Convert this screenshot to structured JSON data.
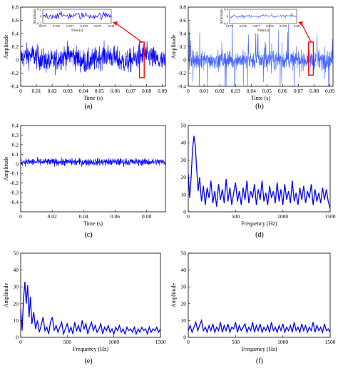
{
  "chart_data": [
    {
      "id": "a",
      "type": "line",
      "panel_label": "(a)",
      "xlabel": "Time (s)",
      "ylabel": "Amplitude",
      "xlim": [
        0,
        0.092
      ],
      "ylim": [
        -0.4,
        0.8
      ],
      "xticks": [
        0,
        0.01,
        0.02,
        0.03,
        0.04,
        0.05,
        0.06,
        0.07,
        0.08,
        0.09
      ],
      "xtick_labels": [
        "0",
        "0.01",
        "0.02",
        "0.03",
        "0.04",
        "0.05",
        "0.06",
        "0.07",
        "0.08",
        "0.09"
      ],
      "yticks": [
        -0.4,
        -0.2,
        0,
        0.2,
        0.4,
        0.6,
        0.8
      ],
      "ytick_labels": [
        "-0.4",
        "-0.2",
        "0",
        "0.2",
        "0.4",
        "0.6",
        "0.8"
      ],
      "series": [
        {
          "style": "dense-noise",
          "mean": 0.02,
          "std": 0.09,
          "color": "#0000ff"
        }
      ],
      "highlight": {
        "x": [
          0.0755,
          0.0785
        ],
        "y": [
          -0.27,
          0.27
        ],
        "color": "#ff0000"
      },
      "inset": {
        "xlabel": "Time (s)",
        "ylabel": "Amplitude",
        "xlim": [
          0.075,
          0.08
        ],
        "ylim": [
          -0.2,
          0.2
        ],
        "xticks": [
          0.075,
          0.076,
          0.077,
          0.078,
          0.079,
          0.08
        ],
        "xtick_labels": [
          "0.075",
          "0.076",
          "0.077",
          "0.078",
          "0.079",
          "0.08"
        ],
        "yticks": [
          -0.2,
          0,
          0.2
        ],
        "ytick_labels": [
          "-0.2",
          "0",
          "0.2"
        ]
      }
    },
    {
      "id": "b",
      "type": "line",
      "panel_label": "(b)",
      "xlabel": "Time (s)",
      "ylabel": "Amplitude",
      "xlim": [
        0,
        0.092
      ],
      "ylim": [
        -0.4,
        0.8
      ],
      "xticks": [
        0,
        0.01,
        0.02,
        0.03,
        0.04,
        0.05,
        0.06,
        0.07,
        0.08,
        0.09
      ],
      "xtick_labels": [
        "0",
        "0.01",
        "0.02",
        "0.03",
        "0.04",
        "0.05",
        "0.06",
        "0.07",
        "0.08",
        "0.09"
      ],
      "yticks": [
        -0.4,
        -0.2,
        0,
        0.2,
        0.4,
        0.6,
        0.8
      ],
      "ytick_labels": [
        "-0.4",
        "-0.2",
        "0",
        "0.2",
        "0.4",
        "0.6",
        "0.8"
      ],
      "series": [
        {
          "style": "impulsive-noise",
          "mean": 0.0,
          "std": 0.07,
          "color": "#4060ff"
        }
      ],
      "highlight": {
        "x": [
          0.0765,
          0.0795
        ],
        "y": [
          -0.23,
          0.27
        ],
        "color": "#ff0000"
      },
      "inset": {
        "xlabel": "Time (s)",
        "ylabel": "Amplitude",
        "xlim": [
          0.075,
          0.08
        ],
        "ylim": [
          -0.4,
          0.4
        ],
        "xticks": [
          0.075,
          0.076,
          0.077,
          0.078,
          0.079,
          0.08
        ],
        "xtick_labels": [
          "0.075",
          "0.076",
          "0.077",
          "0.078",
          "0.079",
          "0.08"
        ],
        "yticks": [
          -0.4,
          0,
          0.4
        ],
        "ytick_labels": [
          "-0.4",
          "0",
          "0.4"
        ]
      }
    },
    {
      "id": "c",
      "type": "line",
      "panel_label": "(c)",
      "xlabel": "Time (s)",
      "ylabel": "Amplitude",
      "xlim": [
        0,
        0.092
      ],
      "ylim": [
        -0.5,
        0.4
      ],
      "xticks": [
        0,
        0.02,
        0.04,
        0.06,
        0.08
      ],
      "xtick_labels": [
        "0",
        "0.02",
        "0.04",
        "0.06",
        "0.08"
      ],
      "yticks": [
        -0.4,
        -0.3,
        -0.2,
        -0.1,
        0,
        0.1,
        0.2,
        0.3,
        0.4
      ],
      "ytick_labels": [
        "-0.4",
        "-0.3",
        "-0.2",
        "-0.1",
        "0",
        "0.1",
        "0.2",
        "0.3",
        "0.4"
      ],
      "series": [
        {
          "style": "band-noise",
          "mean": 0.02,
          "std": 0.02,
          "color": "#0000ff"
        }
      ]
    },
    {
      "id": "d",
      "type": "line",
      "panel_label": "(d)",
      "xlabel": "Frequency (Hz)",
      "ylabel": "",
      "xlim": [
        0,
        1500
      ],
      "ylim": [
        0,
        50
      ],
      "xticks": [
        0,
        500,
        1000,
        1500
      ],
      "xtick_labels": [
        "0",
        "500",
        "1000",
        "1500"
      ],
      "yticks": [
        0,
        10,
        20,
        30,
        40,
        50
      ],
      "ytick_labels": [
        "0",
        "10",
        "20",
        "30",
        "40",
        "50"
      ],
      "series": [
        {
          "color": "#0000ff",
          "x": [
            0,
            15,
            30,
            45,
            60,
            75,
            90,
            105,
            120,
            140,
            160,
            180,
            200,
            220,
            240,
            260,
            280,
            300,
            320,
            340,
            360,
            380,
            400,
            420,
            440,
            460,
            480,
            500,
            520,
            540,
            560,
            580,
            600,
            620,
            640,
            660,
            680,
            700,
            720,
            740,
            760,
            780,
            800,
            820,
            840,
            860,
            880,
            900,
            920,
            940,
            960,
            980,
            1000,
            1020,
            1040,
            1060,
            1080,
            1100,
            1120,
            1140,
            1160,
            1180,
            1200,
            1220,
            1240,
            1260,
            1280,
            1300,
            1320,
            1340,
            1360,
            1380,
            1400,
            1420,
            1440,
            1460,
            1480,
            1500
          ],
          "values": [
            22,
            8,
            20,
            36,
            44,
            38,
            24,
            12,
            20,
            6,
            15,
            4,
            14,
            8,
            18,
            5,
            12,
            3,
            16,
            7,
            13,
            5,
            19,
            6,
            14,
            4,
            11,
            17,
            6,
            12,
            4,
            14,
            7,
            18,
            5,
            12,
            8,
            16,
            4,
            13,
            7,
            18,
            6,
            11,
            4,
            15,
            8,
            12,
            5,
            17,
            6,
            13,
            4,
            16,
            7,
            12,
            5,
            18,
            6,
            11,
            4,
            14,
            7,
            15,
            5,
            12,
            8,
            16,
            4,
            13,
            6,
            11,
            5,
            14,
            7,
            13,
            6,
            2
          ]
        }
      ]
    },
    {
      "id": "e",
      "type": "line",
      "panel_label": "(e)",
      "xlabel": "Frequency (Hz)",
      "ylabel": "Amplitude",
      "xlim": [
        0,
        1500
      ],
      "ylim": [
        0,
        50
      ],
      "xticks": [
        0,
        500,
        1000,
        1500
      ],
      "xtick_labels": [
        "0",
        "500",
        "1000",
        "1500"
      ],
      "yticks": [
        0,
        10,
        20,
        30,
        40,
        50
      ],
      "ytick_labels": [
        "0",
        "10",
        "20",
        "30",
        "40",
        "50"
      ],
      "series": [
        {
          "color": "#0000ff",
          "x": [
            0,
            15,
            30,
            45,
            60,
            75,
            90,
            105,
            120,
            140,
            160,
            180,
            200,
            220,
            240,
            260,
            280,
            300,
            320,
            340,
            360,
            380,
            400,
            420,
            440,
            460,
            480,
            500,
            520,
            540,
            560,
            580,
            600,
            620,
            640,
            660,
            680,
            700,
            720,
            740,
            760,
            780,
            800,
            820,
            840,
            860,
            880,
            900,
            920,
            940,
            960,
            980,
            1000,
            1020,
            1040,
            1060,
            1080,
            1100,
            1120,
            1140,
            1160,
            1180,
            1200,
            1220,
            1240,
            1260,
            1280,
            1300,
            1320,
            1340,
            1360,
            1380,
            1400,
            1420,
            1440,
            1460,
            1480,
            1500
          ],
          "values": [
            17,
            4,
            22,
            33,
            20,
            31,
            12,
            24,
            8,
            15,
            5,
            10,
            3,
            7,
            12,
            4,
            6,
            2,
            9,
            12,
            4,
            7,
            3,
            6,
            9,
            2,
            5,
            8,
            3,
            6,
            2,
            9,
            4,
            7,
            3,
            10,
            5,
            8,
            2,
            6,
            9,
            4,
            7,
            3,
            5,
            8,
            2,
            6,
            4,
            7,
            3,
            5,
            2,
            6,
            4,
            7,
            3,
            5,
            2,
            6,
            4,
            5,
            3,
            6,
            2,
            5,
            3,
            6,
            4,
            5,
            2,
            6,
            3,
            5,
            4,
            6,
            3,
            5
          ]
        }
      ]
    },
    {
      "id": "f",
      "type": "line",
      "panel_label": "(f)",
      "xlabel": "Frequency (Hz)",
      "ylabel": "Amplitude",
      "xlim": [
        0,
        1500
      ],
      "ylim": [
        0,
        50
      ],
      "xticks": [
        0,
        500,
        1000,
        1500
      ],
      "xtick_labels": [
        "0",
        "500",
        "1000",
        "1500"
      ],
      "yticks": [
        0,
        10,
        20,
        30,
        40,
        50
      ],
      "ytick_labels": [
        "0",
        "10",
        "20",
        "30",
        "40",
        "50"
      ],
      "series": [
        {
          "color": "#0000ff",
          "x": [
            0,
            20,
            40,
            60,
            80,
            100,
            120,
            140,
            160,
            180,
            200,
            220,
            240,
            260,
            280,
            300,
            320,
            340,
            360,
            380,
            400,
            420,
            440,
            460,
            480,
            500,
            520,
            540,
            560,
            580,
            600,
            620,
            640,
            660,
            680,
            700,
            720,
            740,
            760,
            780,
            800,
            820,
            840,
            860,
            880,
            900,
            920,
            940,
            960,
            980,
            1000,
            1020,
            1040,
            1060,
            1080,
            1100,
            1120,
            1140,
            1160,
            1180,
            1200,
            1220,
            1240,
            1260,
            1280,
            1300,
            1320,
            1340,
            1360,
            1380,
            1400,
            1420,
            1440,
            1460,
            1480,
            1500
          ],
          "values": [
            4,
            7,
            3,
            6,
            9,
            4,
            7,
            10,
            4,
            6,
            3,
            7,
            4,
            8,
            3,
            6,
            4,
            9,
            3,
            7,
            4,
            8,
            3,
            6,
            5,
            9,
            3,
            7,
            4,
            6,
            8,
            3,
            6,
            4,
            9,
            3,
            7,
            4,
            8,
            3,
            6,
            4,
            7,
            3,
            9,
            4,
            6,
            3,
            7,
            4,
            8,
            3,
            6,
            4,
            7,
            3,
            9,
            4,
            6,
            3,
            8,
            4,
            7,
            3,
            6,
            4,
            9,
            3,
            7,
            4,
            6,
            3,
            8,
            4,
            5,
            3
          ]
        }
      ]
    }
  ]
}
